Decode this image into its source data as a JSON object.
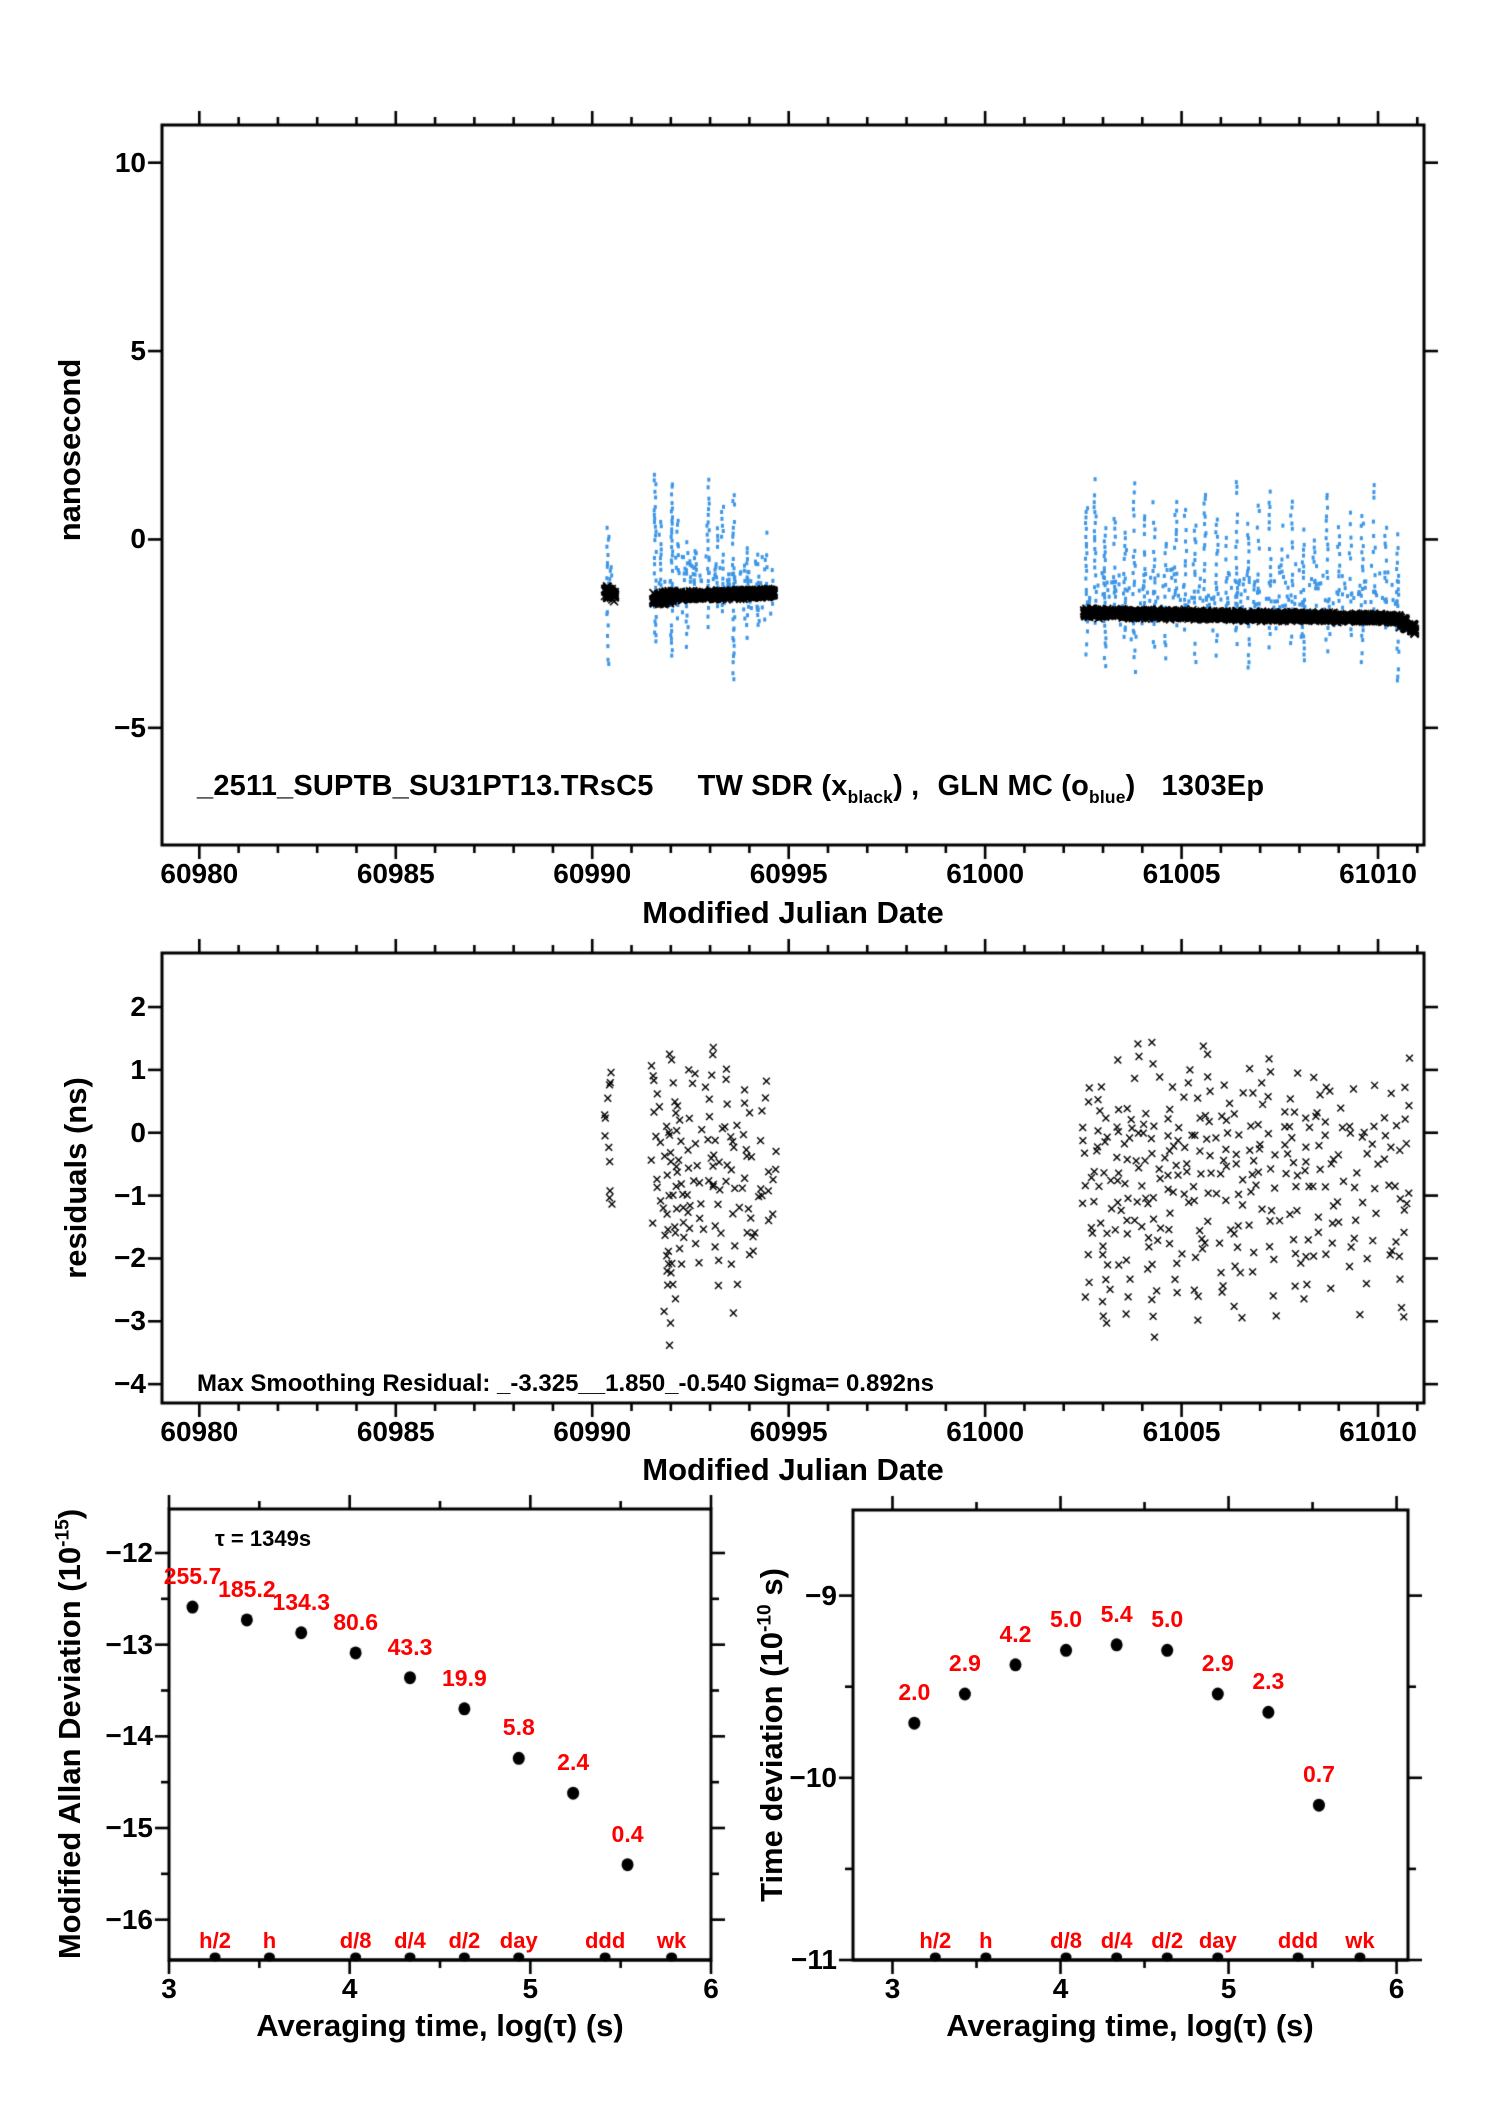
{
  "colors": {
    "black": "#000000",
    "blue": "#3d96e6",
    "red": "#ff0000"
  },
  "chart_data": [
    {
      "id": "tw",
      "type": "scatter",
      "title": {
        "pre": "_2511_SUPTB_SU31PT13.TRsC5",
        "tw": "TW SDR (x",
        "tw_sub": "black",
        "tw_close": ") ,",
        "gln": "GLN MC (o",
        "gln_sub": "blue",
        "gln_close": ")",
        "epoch": "1303Ep"
      },
      "xlabel": "Modified Julian Date",
      "ylabel": "nanosecond",
      "xlim": [
        60979.05,
        61011.17
      ],
      "ylim": [
        -8.11,
        11.0
      ],
      "xticks": {
        "major": [
          [
            60980,
            "60980"
          ],
          [
            60985,
            "60985"
          ],
          [
            60990,
            "60990"
          ],
          [
            60995,
            "60995"
          ],
          [
            61000,
            "61000"
          ],
          [
            61005,
            "61005"
          ],
          [
            61010,
            "61010"
          ]
        ],
        "minor_every": 1
      },
      "yticks": {
        "major": [
          [
            10,
            "10"
          ],
          [
            5,
            "5"
          ],
          [
            0,
            "0"
          ],
          [
            -5,
            "−5"
          ]
        ],
        "minor_every": null
      },
      "series": [
        {
          "name": "TW SDR",
          "marker": "x",
          "segments_format": "[x0,x1,y0,y1,sd,n]",
          "segments": [
            [
              60990.32,
              60990.58,
              -1.35,
              -1.5,
              0.08,
              70
            ],
            [
              60991.55,
              60992.1,
              -1.6,
              -1.5,
              0.07,
              160
            ],
            [
              60992.1,
              60994.62,
              -1.5,
              -1.42,
              0.05,
              650
            ],
            [
              61002.52,
              61010.55,
              -1.95,
              -2.1,
              0.05,
              1900
            ],
            [
              61010.55,
              61010.95,
              -2.15,
              -2.4,
              0.07,
              90
            ]
          ]
        },
        {
          "name": "GLN MC",
          "marker": "square",
          "streaks_format": "[mjd,ymin,ymax,n]",
          "streaks": [
            [
              60990.4,
              -3.3,
              0.4,
              26
            ],
            [
              60990.47,
              -1.8,
              -0.6,
              10
            ],
            [
              60991.6,
              -2.7,
              1.8,
              40
            ],
            [
              60991.73,
              -1.4,
              0.9,
              16
            ],
            [
              60992.02,
              -3.3,
              1.6,
              44
            ],
            [
              60992.17,
              -2.1,
              0.7,
              18
            ],
            [
              60992.42,
              -2.9,
              0.2,
              22
            ],
            [
              60992.62,
              -1.6,
              -0.2,
              10
            ],
            [
              60992.95,
              -2.3,
              1.7,
              30
            ],
            [
              60993.18,
              -1.2,
              0.5,
              10
            ],
            [
              60993.32,
              -1.9,
              1.0,
              20
            ],
            [
              60993.6,
              -3.7,
              1.3,
              36
            ],
            [
              60993.95,
              -2.6,
              0.6,
              20
            ],
            [
              60994.22,
              -2.3,
              -0.2,
              14
            ],
            [
              60994.42,
              -1.5,
              0.3,
              10
            ],
            [
              60994.58,
              -2.0,
              -0.6,
              8
            ],
            [
              61002.58,
              -3.0,
              1.0,
              26
            ],
            [
              61002.8,
              -2.2,
              1.7,
              24
            ],
            [
              61003.05,
              -3.4,
              0.6,
              30
            ],
            [
              61003.3,
              -1.8,
              0.9,
              16
            ],
            [
              61003.55,
              -2.6,
              0.3,
              20
            ],
            [
              61003.8,
              -3.8,
              1.6,
              34
            ],
            [
              61004.05,
              -2.0,
              0.8,
              18
            ],
            [
              61004.3,
              -2.9,
              1.2,
              26
            ],
            [
              61004.6,
              -3.3,
              0.2,
              24
            ],
            [
              61004.85,
              -1.6,
              1.5,
              18
            ],
            [
              61005.1,
              -2.4,
              0.9,
              20
            ],
            [
              61005.35,
              -3.6,
              0.5,
              28
            ],
            [
              61005.6,
              -2.0,
              1.4,
              20
            ],
            [
              61005.9,
              -3.1,
              0.8,
              26
            ],
            [
              61006.15,
              -1.7,
              0.4,
              12
            ],
            [
              61006.4,
              -2.8,
              1.7,
              26
            ],
            [
              61006.7,
              -3.5,
              0.6,
              28
            ],
            [
              61006.95,
              -2.2,
              1.1,
              18
            ],
            [
              61007.25,
              -3.0,
              1.5,
              26
            ],
            [
              61007.55,
              -1.9,
              0.7,
              14
            ],
            [
              61007.8,
              -2.7,
              1.2,
              22
            ],
            [
              61008.1,
              -3.3,
              0.4,
              26
            ],
            [
              61008.4,
              -2.1,
              1.0,
              16
            ],
            [
              61008.7,
              -2.9,
              1.6,
              24
            ],
            [
              61009.0,
              -1.8,
              0.5,
              12
            ],
            [
              61009.3,
              -2.6,
              1.1,
              20
            ],
            [
              61009.6,
              -3.2,
              0.8,
              24
            ],
            [
              61009.9,
              -2.0,
              1.7,
              18
            ],
            [
              61010.2,
              -2.8,
              0.6,
              20
            ],
            [
              61010.5,
              -3.8,
              0.3,
              26
            ]
          ],
          "bands_format": "[x0,x1,ymean,sd,n]",
          "bands": [
            [
              60991.6,
              60994.6,
              -1.2,
              0.4,
              120
            ],
            [
              61002.55,
              61010.6,
              -1.55,
              0.45,
              260
            ]
          ]
        }
      ]
    },
    {
      "id": "res",
      "type": "scatter",
      "annotation": "Max Smoothing Residual: _-3.325__1.850_-0.540  Sigma= 0.892ns",
      "xlabel": "Modified Julian Date",
      "ylabel": "residuals (ns)",
      "xlim": [
        60979.05,
        61011.17
      ],
      "ylim": [
        -4.3,
        2.86
      ],
      "xticks": {
        "major": [
          [
            60980,
            "60980"
          ],
          [
            60985,
            "60985"
          ],
          [
            60990,
            "60990"
          ],
          [
            60995,
            "60995"
          ],
          [
            61000,
            "61000"
          ],
          [
            61005,
            "61005"
          ],
          [
            61010,
            "61010"
          ]
        ],
        "minor_every": 1
      },
      "yticks": {
        "major": [
          [
            2,
            "2"
          ],
          [
            1,
            "1"
          ],
          [
            0,
            "0"
          ],
          [
            -1,
            "−1"
          ],
          [
            -2,
            "−2"
          ],
          [
            -3,
            "−3"
          ],
          [
            -4,
            "−4"
          ]
        ],
        "minor_every": null
      },
      "series": [
        {
          "name": "residuals",
          "marker": "x",
          "streaks_format": "[mjd,ymin,ymax,n]",
          "streaks": [
            [
              60990.4,
              -1.2,
              1.2,
              14
            ],
            [
              60991.62,
              -1.4,
              1.3,
              16
            ],
            [
              60991.88,
              -3.35,
              0.3,
              20
            ],
            [
              60992.05,
              -2.7,
              1.5,
              20
            ],
            [
              60992.25,
              -2.0,
              0.8,
              14
            ],
            [
              60992.5,
              -1.5,
              1.45,
              16
            ],
            [
              60992.72,
              -2.3,
              0.4,
              12
            ],
            [
              60992.98,
              -1.1,
              1.55,
              14
            ],
            [
              60993.2,
              -2.5,
              0.6,
              14
            ],
            [
              60993.45,
              -0.9,
              1.2,
              10
            ],
            [
              60993.65,
              -3.0,
              0.3,
              16
            ],
            [
              60993.9,
              -1.9,
              1.0,
              12
            ],
            [
              60994.15,
              -2.4,
              -0.2,
              10
            ],
            [
              60994.4,
              -1.3,
              1.05,
              10
            ],
            [
              60994.6,
              -1.7,
              0.2,
              8
            ],
            [
              61002.6,
              -2.6,
              0.9,
              16
            ],
            [
              61002.85,
              -1.6,
              1.3,
              12
            ],
            [
              61003.1,
              -3.1,
              0.4,
              18
            ],
            [
              61003.35,
              -2.0,
              1.35,
              14
            ],
            [
              61003.6,
              -2.8,
              0.6,
              16
            ],
            [
              61003.85,
              -1.4,
              1.7,
              12
            ],
            [
              61004.1,
              -2.3,
              0.8,
              14
            ],
            [
              61004.35,
              -3.2,
              1.6,
              20
            ],
            [
              61004.65,
              -1.8,
              0.9,
              12
            ],
            [
              61004.9,
              -2.5,
              0.3,
              14
            ],
            [
              61005.15,
              -1.2,
              1.2,
              10
            ],
            [
              61005.4,
              -2.9,
              0.7,
              16
            ],
            [
              61005.65,
              -1.9,
              1.65,
              14
            ],
            [
              61005.95,
              -2.6,
              0.4,
              14
            ],
            [
              61006.2,
              -1.5,
              1.0,
              10
            ],
            [
              61006.45,
              -3.2,
              0.8,
              18
            ],
            [
              61006.75,
              -2.2,
              1.3,
              14
            ],
            [
              61007.0,
              -1.7,
              1.0,
              10
            ],
            [
              61007.3,
              -2.8,
              1.5,
              16
            ],
            [
              61007.6,
              -1.3,
              0.6,
              8
            ],
            [
              61007.85,
              -2.4,
              1.1,
              14
            ],
            [
              61008.15,
              -3.0,
              0.5,
              16
            ],
            [
              61008.45,
              -1.9,
              1.2,
              12
            ],
            [
              61008.75,
              -2.6,
              1.4,
              14
            ],
            [
              61009.05,
              -1.4,
              0.7,
              8
            ],
            [
              61009.35,
              -2.2,
              1.0,
              12
            ],
            [
              61009.65,
              -2.9,
              0.6,
              14
            ],
            [
              61009.95,
              -1.6,
              1.35,
              10
            ],
            [
              61010.25,
              -2.3,
              0.8,
              12
            ],
            [
              61010.55,
              -3.0,
              0.4,
              14
            ],
            [
              61010.75,
              -1.2,
              1.55,
              10
            ]
          ]
        }
      ]
    },
    {
      "id": "mdev",
      "type": "scatter",
      "annotation": "τ = 1349s",
      "xlabel": "Averaging time, log(τ) (s)",
      "ylabel_pre": "Modified Allan Deviation (10",
      "ylabel_sup": "-15",
      "ylabel_post": ")",
      "xlim": [
        3.0,
        6.0
      ],
      "ylim": [
        -16.44,
        -11.52
      ],
      "xticks": {
        "major": [
          [
            3,
            "3"
          ],
          [
            4,
            "4"
          ],
          [
            5,
            "5"
          ],
          [
            6,
            "6"
          ]
        ],
        "minor_every": 0.5
      },
      "yticks": {
        "major": [
          [
            -12,
            "−12"
          ],
          [
            -13,
            "−13"
          ],
          [
            -14,
            "−14"
          ],
          [
            -15,
            "−15"
          ],
          [
            -16,
            "−16"
          ]
        ],
        "minor_every": 0.5
      },
      "points": [
        {
          "x": 3.13,
          "y": -12.59,
          "label": "255.7"
        },
        {
          "x": 3.431,
          "y": -12.73,
          "label": "185.2"
        },
        {
          "x": 3.732,
          "y": -12.87,
          "label": "134.3"
        },
        {
          "x": 4.033,
          "y": -13.09,
          "label": "80.6"
        },
        {
          "x": 4.334,
          "y": -13.36,
          "label": "43.3"
        },
        {
          "x": 4.635,
          "y": -13.7,
          "label": "19.9"
        },
        {
          "x": 4.936,
          "y": -14.24,
          "label": "5.8"
        },
        {
          "x": 5.237,
          "y": -14.62,
          "label": "2.4"
        },
        {
          "x": 5.538,
          "y": -15.4,
          "label": "0.4"
        }
      ],
      "tau_marks": [
        [
          3.255,
          "h/2"
        ],
        [
          3.556,
          "h"
        ],
        [
          4.033,
          "d/8"
        ],
        [
          4.334,
          "d/4"
        ],
        [
          4.635,
          "d/2"
        ],
        [
          4.936,
          "day"
        ],
        [
          5.414,
          "ddd"
        ],
        [
          5.782,
          "wk"
        ]
      ]
    },
    {
      "id": "tdev",
      "type": "scatter",
      "xlabel": "Averaging time, log(τ) (s)",
      "ylabel_pre": "Time deviation (10",
      "ylabel_sup": "-10",
      "ylabel_post": " s)",
      "xlim": [
        2.765,
        6.068
      ],
      "ylim": [
        -11.0,
        -8.53
      ],
      "xticks": {
        "major": [
          [
            3,
            "3"
          ],
          [
            4,
            "4"
          ],
          [
            5,
            "5"
          ],
          [
            6,
            "6"
          ]
        ],
        "minor_every": 0.5
      },
      "yticks": {
        "major": [
          [
            -9,
            "−9"
          ],
          [
            -10,
            "−10"
          ],
          [
            -11,
            "−11"
          ]
        ],
        "minor_every": 0.5
      },
      "points": [
        {
          "x": 3.13,
          "y": -9.7,
          "label": "2.0"
        },
        {
          "x": 3.431,
          "y": -9.54,
          "label": "2.9"
        },
        {
          "x": 3.732,
          "y": -9.38,
          "label": "4.2"
        },
        {
          "x": 4.033,
          "y": -9.3,
          "label": "5.0"
        },
        {
          "x": 4.334,
          "y": -9.27,
          "label": "5.4"
        },
        {
          "x": 4.635,
          "y": -9.3,
          "label": "5.0"
        },
        {
          "x": 4.936,
          "y": -9.54,
          "label": "2.9"
        },
        {
          "x": 5.237,
          "y": -9.64,
          "label": "2.3"
        },
        {
          "x": 5.538,
          "y": -10.15,
          "label": "0.7"
        }
      ],
      "tau_marks": [
        [
          3.255,
          "h/2"
        ],
        [
          3.556,
          "h"
        ],
        [
          4.033,
          "d/8"
        ],
        [
          4.334,
          "d/4"
        ],
        [
          4.635,
          "d/2"
        ],
        [
          4.936,
          "day"
        ],
        [
          5.414,
          "ddd"
        ],
        [
          5.782,
          "wk"
        ]
      ]
    }
  ]
}
